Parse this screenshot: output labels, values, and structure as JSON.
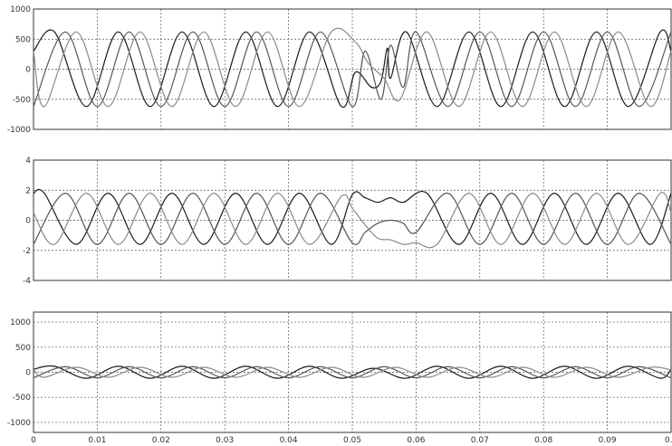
{
  "chart_data": [
    {
      "type": "line",
      "title": "",
      "xlabel": "",
      "ylabel": "",
      "xlim": [
        0,
        0.1
      ],
      "ylim": [
        -1000,
        1000
      ],
      "yticks": [
        -1000,
        -500,
        0,
        500,
        1000
      ],
      "ytick_labels": [
        "-1000",
        "-500",
        "0",
        "500",
        "1000"
      ],
      "xticks": [
        0,
        0.01,
        0.02,
        0.03,
        0.04,
        0.05,
        0.06,
        0.07,
        0.08,
        0.09,
        0.1
      ],
      "grid": true,
      "series_colors": [
        "#1a1a1a",
        "#555555",
        "#8a8a8a"
      ],
      "series": [
        {
          "x": [
            0,
            0.0033,
            0.0083,
            0.0133,
            0.0183,
            0.0233,
            0.0283,
            0.0333,
            0.0383,
            0.0433,
            0.0483,
            0.0505,
            0.053,
            0.0545,
            0.0555,
            0.056,
            0.0585,
            0.0633,
            0.0683,
            0.0733,
            0.0783,
            0.0833,
            0.0883,
            0.0933,
            0.0983,
            0.1
          ],
          "y": [
            300,
            620,
            -620,
            620,
            -620,
            620,
            -620,
            620,
            -620,
            620,
            -620,
            -50,
            -300,
            -200,
            350,
            -150,
            620,
            -620,
            620,
            -620,
            620,
            -620,
            620,
            -620,
            620,
            300
          ]
        },
        {
          "x": [
            0,
            0.005,
            0.01,
            0.015,
            0.02,
            0.025,
            0.03,
            0.035,
            0.04,
            0.045,
            0.05,
            0.052,
            0.0545,
            0.056,
            0.058,
            0.06,
            0.065,
            0.07,
            0.075,
            0.08,
            0.085,
            0.09,
            0.095,
            0.1
          ],
          "y": [
            -620,
            620,
            -620,
            620,
            -620,
            620,
            -620,
            620,
            -620,
            620,
            -620,
            300,
            -500,
            400,
            -300,
            620,
            -620,
            620,
            -620,
            620,
            -620,
            620,
            -620,
            620
          ]
        },
        {
          "x": [
            0,
            0.0017,
            0.0067,
            0.0117,
            0.0167,
            0.0217,
            0.0267,
            0.0317,
            0.0367,
            0.0417,
            0.0467,
            0.0505,
            0.0525,
            0.055,
            0.0575,
            0.0617,
            0.0667,
            0.0717,
            0.0767,
            0.0817,
            0.0867,
            0.0917,
            0.0967,
            0.1
          ],
          "y": [
            300,
            -620,
            620,
            -620,
            620,
            -620,
            620,
            -620,
            620,
            -620,
            620,
            450,
            100,
            -150,
            -500,
            620,
            -620,
            620,
            -620,
            620,
            -620,
            620,
            -620,
            300
          ]
        }
      ]
    },
    {
      "type": "line",
      "title": "",
      "xlabel": "",
      "ylabel": "",
      "xlim": [
        0,
        0.1
      ],
      "ylim": [
        -4,
        4
      ],
      "yticks": [
        -4,
        -2,
        0,
        2,
        4
      ],
      "ytick_labels": [
        "-4",
        "-2",
        "0",
        "2",
        "4"
      ],
      "xticks": [
        0,
        0.01,
        0.02,
        0.03,
        0.04,
        0.05,
        0.06,
        0.07,
        0.08,
        0.09,
        0.1
      ],
      "grid": true,
      "series_colors": [
        "#1a1a1a",
        "#555555",
        "#8a8a8a"
      ],
      "series": [
        {
          "x": [
            0,
            0.0017,
            0.0067,
            0.0117,
            0.0167,
            0.0217,
            0.0267,
            0.0317,
            0.0367,
            0.0417,
            0.0467,
            0.05,
            0.052,
            0.054,
            0.056,
            0.058,
            0.0617,
            0.0667,
            0.0717,
            0.0767,
            0.0817,
            0.0867,
            0.0917,
            0.0967,
            0.1
          ],
          "y": [
            1.8,
            1.8,
            -1.6,
            1.8,
            -1.6,
            1.8,
            -1.6,
            1.8,
            -1.6,
            1.8,
            -1.6,
            1.7,
            1.5,
            1.2,
            1.5,
            1.2,
            1.8,
            -1.6,
            1.8,
            -1.6,
            1.8,
            -1.6,
            1.8,
            -1.6,
            1.8
          ]
        },
        {
          "x": [
            0,
            0.005,
            0.01,
            0.015,
            0.02,
            0.025,
            0.03,
            0.035,
            0.04,
            0.045,
            0.05,
            0.052,
            0.054,
            0.056,
            0.058,
            0.06,
            0.065,
            0.07,
            0.075,
            0.08,
            0.085,
            0.09,
            0.095,
            0.1
          ],
          "y": [
            -1.6,
            1.8,
            -1.6,
            1.8,
            -1.6,
            1.8,
            -1.6,
            1.8,
            -1.6,
            1.8,
            -1.5,
            -0.8,
            -0.2,
            0.0,
            -0.2,
            -0.8,
            1.8,
            -1.6,
            1.8,
            -1.6,
            1.8,
            -1.6,
            1.8,
            -1.6
          ]
        },
        {
          "x": [
            0,
            0.0033,
            0.0083,
            0.0133,
            0.0183,
            0.0233,
            0.0283,
            0.0333,
            0.0383,
            0.0433,
            0.0483,
            0.05,
            0.052,
            0.054,
            0.056,
            0.058,
            0.06,
            0.0633,
            0.0683,
            0.0733,
            0.0783,
            0.0833,
            0.0883,
            0.0933,
            0.0983,
            0.1
          ],
          "y": [
            0.5,
            -1.6,
            1.8,
            -1.6,
            1.8,
            -1.6,
            1.8,
            -1.6,
            1.8,
            -1.6,
            1.6,
            0.8,
            -0.3,
            -1.2,
            -1.3,
            -1.6,
            -1.5,
            -1.6,
            1.8,
            -1.6,
            1.8,
            -1.6,
            1.8,
            -1.6,
            1.8,
            0.5
          ]
        }
      ]
    },
    {
      "type": "line",
      "title": "",
      "xlabel": "",
      "ylabel": "",
      "xlim": [
        0,
        0.1
      ],
      "ylim": [
        -1200,
        1200
      ],
      "yticks": [
        -1000,
        -500,
        0,
        500,
        1000
      ],
      "ytick_labels": [
        "-1000",
        "-500",
        "0",
        "500",
        "1000"
      ],
      "xticks": [
        0,
        0.01,
        0.02,
        0.03,
        0.04,
        0.05,
        0.06,
        0.07,
        0.08,
        0.09,
        0.1
      ],
      "xtick_labels": [
        "0",
        "0.01",
        "0.02",
        "0.03",
        "0.04",
        "0.05",
        "0.06",
        "0.07",
        "0.08",
        "0.09",
        "0.1"
      ],
      "grid": true,
      "series_colors": [
        "#1a1a1a",
        "#555555",
        "#8a8a8a"
      ],
      "series": [
        {
          "x": [
            0,
            0.0033,
            0.0083,
            0.0133,
            0.0183,
            0.0233,
            0.0283,
            0.0333,
            0.0383,
            0.0433,
            0.0483,
            0.0533,
            0.0583,
            0.0633,
            0.0683,
            0.0733,
            0.0783,
            0.0833,
            0.0883,
            0.0933,
            0.0983,
            0.1
          ],
          "y": [
            60,
            120,
            -120,
            120,
            -120,
            120,
            -120,
            120,
            -120,
            120,
            -120,
            80,
            -120,
            120,
            -120,
            120,
            -120,
            120,
            -120,
            120,
            -120,
            60
          ]
        },
        {
          "x": [
            0,
            0.005,
            0.01,
            0.015,
            0.02,
            0.025,
            0.03,
            0.035,
            0.04,
            0.045,
            0.05,
            0.055,
            0.06,
            0.065,
            0.07,
            0.075,
            0.08,
            0.085,
            0.09,
            0.095,
            0.1
          ],
          "y": [
            -110,
            110,
            -110,
            110,
            -110,
            110,
            -110,
            110,
            -110,
            110,
            -110,
            110,
            -110,
            110,
            -110,
            110,
            -110,
            110,
            -110,
            110,
            -110
          ]
        },
        {
          "x": [
            0,
            0.0017,
            0.0067,
            0.0117,
            0.0167,
            0.0217,
            0.0267,
            0.0317,
            0.0367,
            0.0417,
            0.0467,
            0.0517,
            0.0567,
            0.0617,
            0.0667,
            0.0717,
            0.0767,
            0.0817,
            0.0867,
            0.0917,
            0.0967,
            0.1
          ],
          "y": [
            50,
            -100,
            100,
            -100,
            100,
            -100,
            100,
            -100,
            100,
            -100,
            100,
            -100,
            100,
            -100,
            100,
            -100,
            100,
            -100,
            100,
            -100,
            100,
            50
          ]
        }
      ]
    }
  ]
}
